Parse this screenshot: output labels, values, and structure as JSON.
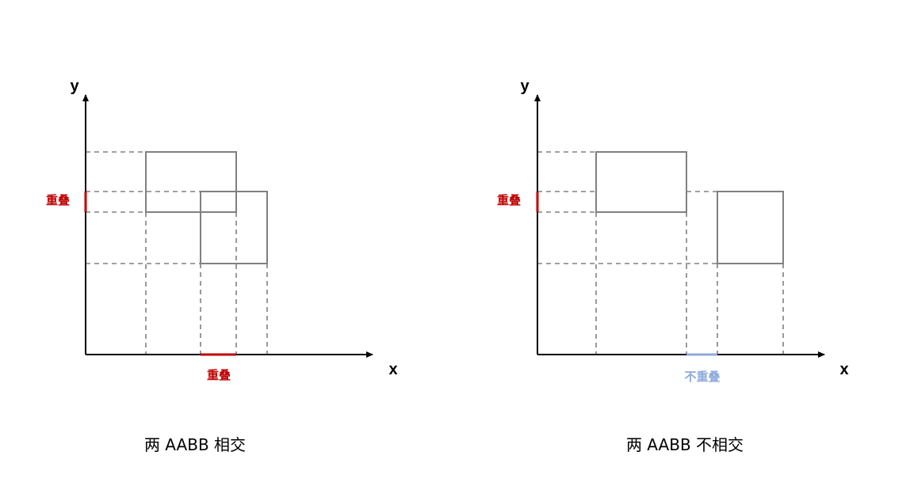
{
  "colors": {
    "overlap": "#c00000",
    "no_overlap": "#8eaadb",
    "axis": "#000000",
    "box": "#808080"
  },
  "left": {
    "y_axis_label": "y",
    "x_axis_label": "x",
    "y_overlap_label": "重叠",
    "x_overlap_label": "重叠",
    "caption": "两 AABB 相交"
  },
  "right": {
    "y_axis_label": "y",
    "x_axis_label": "x",
    "y_overlap_label": "重叠",
    "x_overlap_label": "不重叠",
    "caption": "两 AABB 不相交"
  }
}
